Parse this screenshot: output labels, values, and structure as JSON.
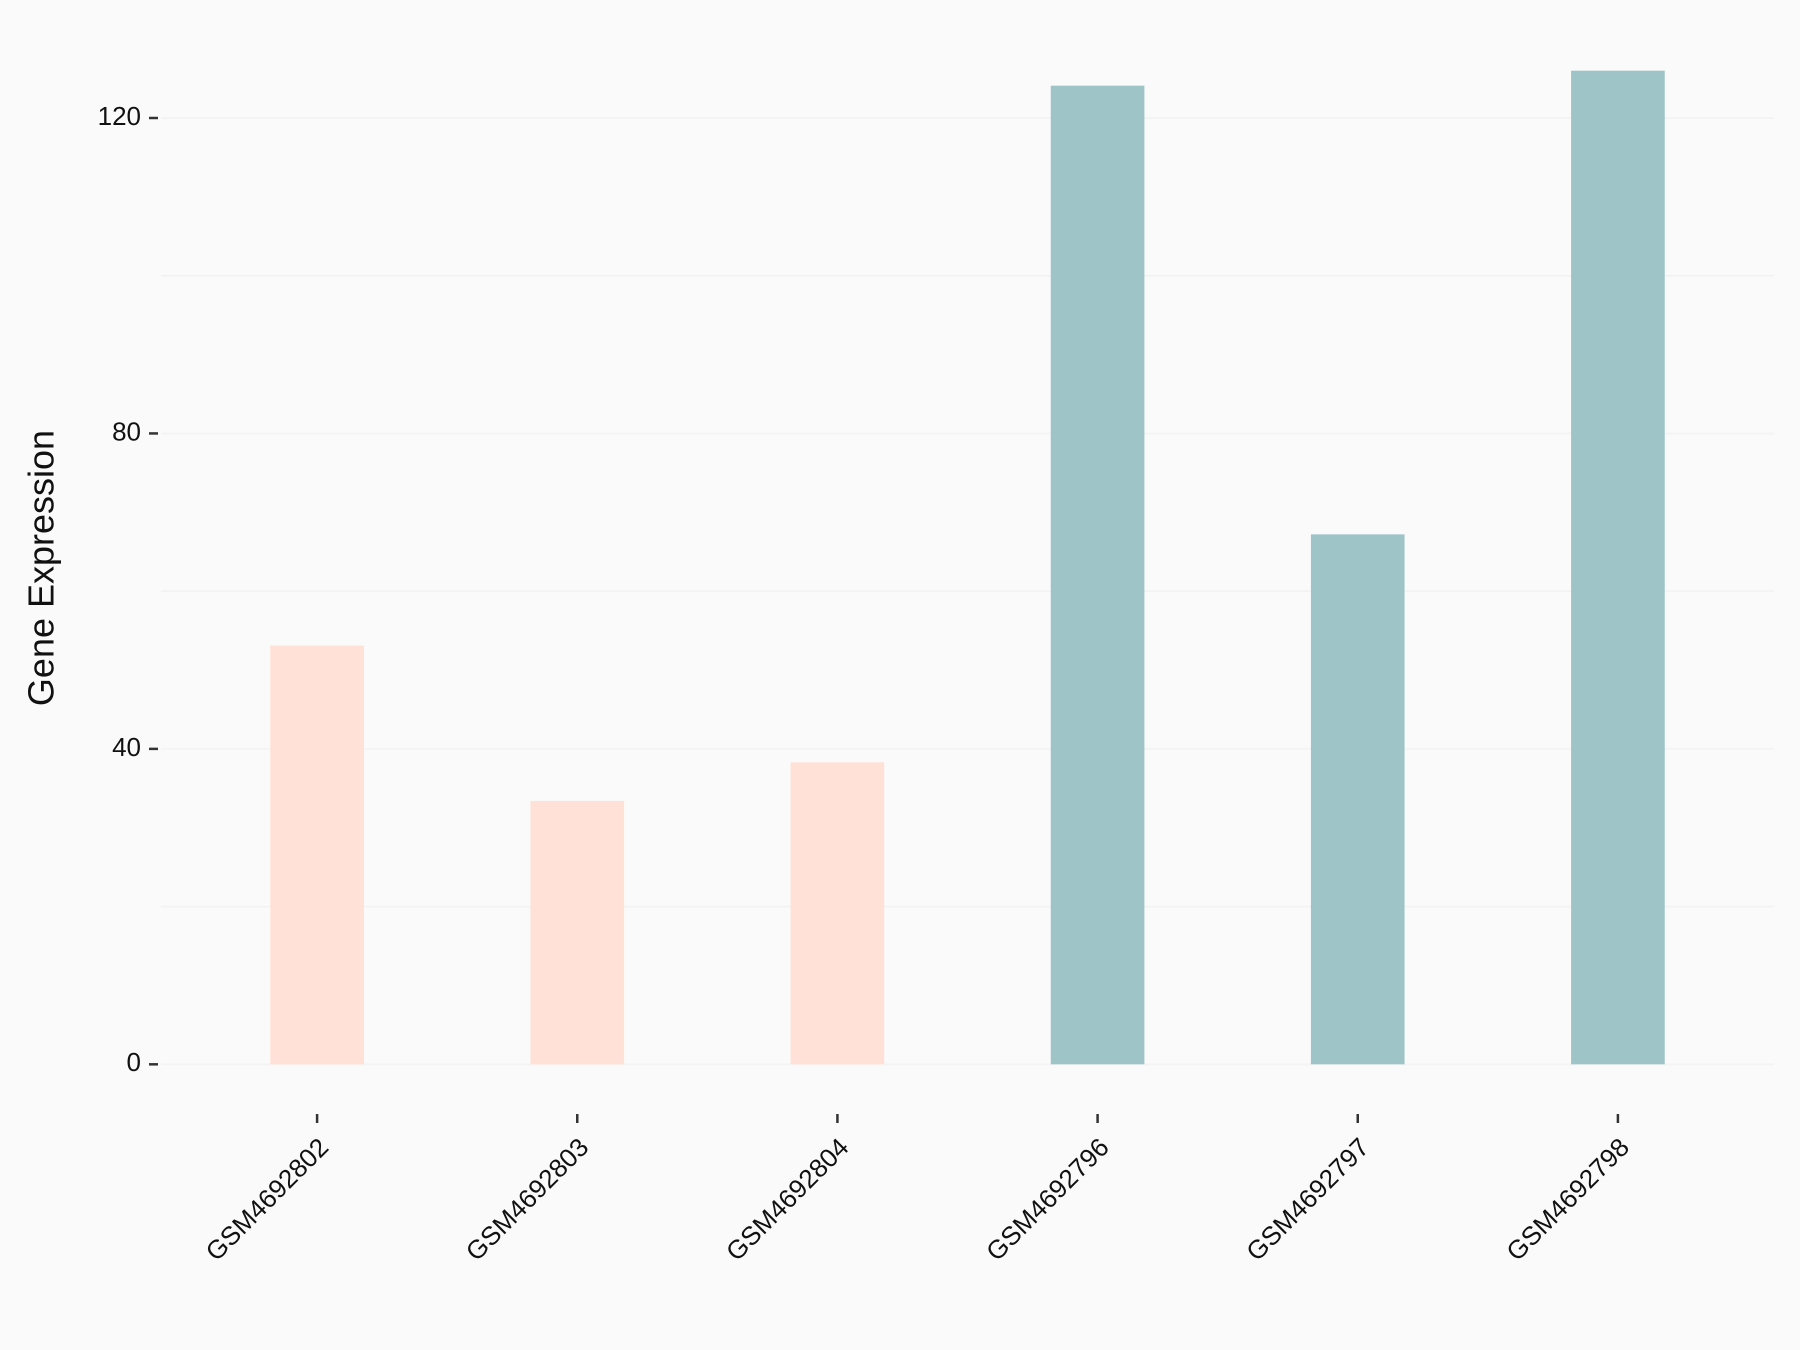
{
  "chart_data": {
    "type": "bar",
    "y_label": "Gene Expression",
    "categories": [
      "GSM4692802",
      "GSM4692803",
      "GSM4692804",
      "GSM4692796",
      "GSM4692797",
      "GSM4692798"
    ],
    "values": [
      53.1,
      33.4,
      38.3,
      124.1,
      67.2,
      126.0
    ],
    "colors": [
      "#ffe1d8",
      "#ffe1d8",
      "#ffe1d8",
      "#9ec4c8",
      "#9ec4c8",
      "#9ec4c8"
    ],
    "ylim": [
      -6.3,
      132.3
    ],
    "yticks": [
      0,
      40,
      80,
      120
    ],
    "minor_yticks": [
      20,
      60,
      100
    ],
    "grid": true
  }
}
